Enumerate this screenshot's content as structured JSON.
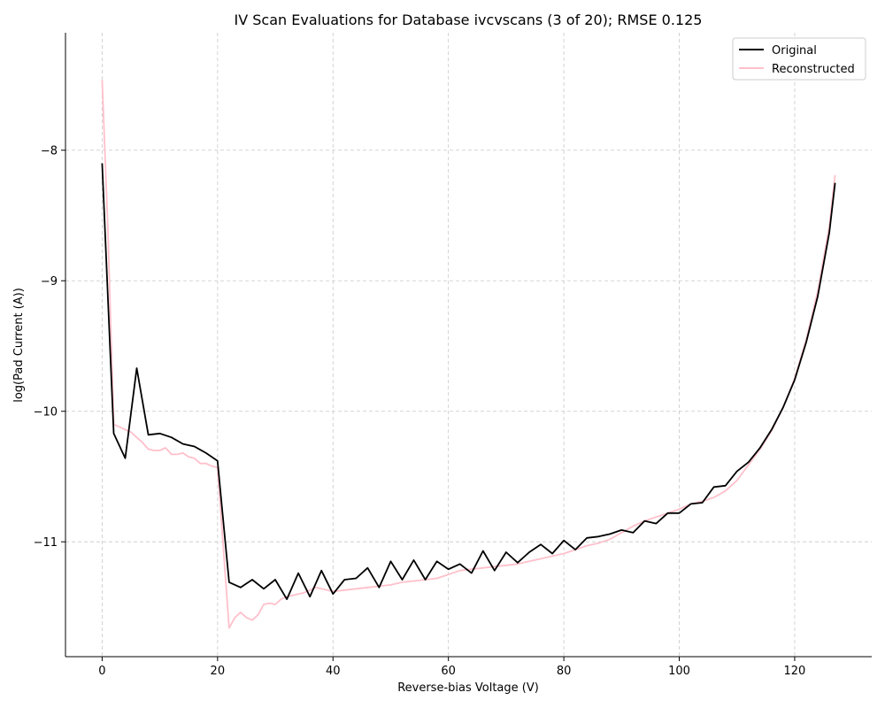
{
  "chart_data": {
    "type": "line",
    "title": "IV Scan Evaluations for Database ivcvscans (3 of 20); RMSE 0.125",
    "xlabel": "Reverse-bias Voltage (V)",
    "ylabel": "log(Pad Current (A))",
    "xlim": [
      -6.35,
      133.35
    ],
    "ylim": [
      -11.88,
      -7.1
    ],
    "xticks": [
      0,
      20,
      40,
      60,
      80,
      100,
      120
    ],
    "yticks": [
      -8,
      -9,
      -10,
      -11
    ],
    "ytick_labels": [
      "−8",
      "−9",
      "−10",
      "−11"
    ],
    "grid": true,
    "legend_position": "top-right",
    "series": [
      {
        "name": "Original",
        "color": "#000000",
        "x": [
          0,
          2,
          4,
          6,
          8,
          10,
          12,
          14,
          16,
          18,
          20,
          22,
          24,
          26,
          28,
          30,
          32,
          34,
          36,
          38,
          40,
          42,
          44,
          46,
          48,
          50,
          52,
          54,
          56,
          58,
          60,
          62,
          64,
          66,
          68,
          70,
          72,
          74,
          76,
          78,
          80,
          82,
          84,
          86,
          88,
          90,
          92,
          94,
          96,
          98,
          100,
          102,
          104,
          106,
          108,
          110,
          112,
          114,
          116,
          118,
          120,
          122,
          124,
          126,
          127
        ],
        "values": [
          -8.1,
          -10.17,
          -10.36,
          -9.67,
          -10.18,
          -10.17,
          -10.2,
          -10.25,
          -10.27,
          -10.32,
          -10.38,
          -11.31,
          -11.35,
          -11.29,
          -11.36,
          -11.29,
          -11.44,
          -11.24,
          -11.42,
          -11.22,
          -11.4,
          -11.29,
          -11.28,
          -11.2,
          -11.35,
          -11.15,
          -11.29,
          -11.14,
          -11.29,
          -11.15,
          -11.21,
          -11.17,
          -11.24,
          -11.07,
          -11.22,
          -11.08,
          -11.16,
          -11.08,
          -11.02,
          -11.09,
          -10.99,
          -11.06,
          -10.97,
          -10.96,
          -10.94,
          -10.91,
          -10.93,
          -10.84,
          -10.86,
          -10.78,
          -10.78,
          -10.71,
          -10.7,
          -10.58,
          -10.57,
          -10.46,
          -10.39,
          -10.28,
          -10.14,
          -9.97,
          -9.76,
          -9.47,
          -9.12,
          -8.63,
          -8.25
        ]
      },
      {
        "name": "Reconstructed",
        "color": "#ffc0cb",
        "x": [
          0,
          1,
          2,
          3,
          4,
          5,
          6,
          7,
          8,
          9,
          10,
          11,
          12,
          13,
          14,
          15,
          16,
          17,
          18,
          19,
          20,
          21,
          22,
          23,
          24,
          25,
          26,
          27,
          28,
          29,
          30,
          31,
          32,
          33,
          34,
          35,
          36,
          37,
          38,
          39,
          40,
          42,
          44,
          46,
          48,
          50,
          52,
          54,
          56,
          58,
          60,
          62,
          64,
          66,
          68,
          70,
          72,
          74,
          76,
          78,
          80,
          82,
          84,
          86,
          88,
          90,
          92,
          94,
          96,
          98,
          100,
          102,
          104,
          106,
          108,
          110,
          112,
          114,
          116,
          118,
          120,
          122,
          124,
          126,
          127
        ],
        "values": [
          -7.46,
          -8.6,
          -10.1,
          -10.12,
          -10.14,
          -10.16,
          -10.2,
          -10.24,
          -10.29,
          -10.3,
          -10.3,
          -10.28,
          -10.33,
          -10.33,
          -10.32,
          -10.35,
          -10.36,
          -10.4,
          -10.4,
          -10.42,
          -10.43,
          -11.05,
          -11.66,
          -11.58,
          -11.54,
          -11.58,
          -11.6,
          -11.56,
          -11.48,
          -11.47,
          -11.48,
          -11.44,
          -11.42,
          -11.41,
          -11.4,
          -11.39,
          -11.37,
          -11.35,
          -11.36,
          -11.37,
          -11.38,
          -11.37,
          -11.36,
          -11.35,
          -11.34,
          -11.33,
          -11.31,
          -11.3,
          -11.29,
          -11.28,
          -11.25,
          -11.22,
          -11.21,
          -11.2,
          -11.19,
          -11.18,
          -11.17,
          -11.15,
          -11.13,
          -11.11,
          -11.09,
          -11.06,
          -11.03,
          -11.01,
          -10.98,
          -10.93,
          -10.88,
          -10.84,
          -10.81,
          -10.78,
          -10.75,
          -10.71,
          -10.69,
          -10.66,
          -10.61,
          -10.53,
          -10.41,
          -10.29,
          -10.15,
          -9.97,
          -9.75,
          -9.45,
          -9.08,
          -8.58,
          -8.19
        ]
      }
    ]
  }
}
